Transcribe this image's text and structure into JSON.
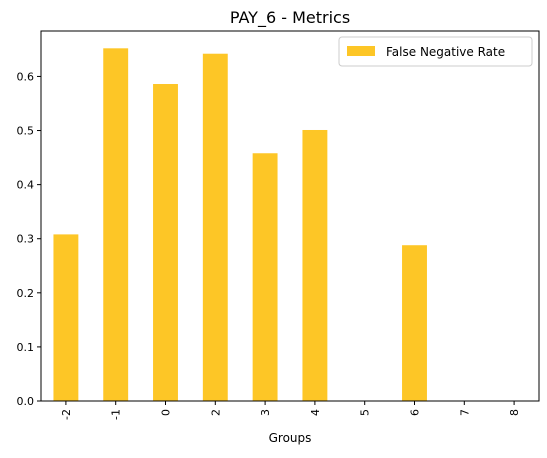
{
  "chart_data": {
    "type": "bar",
    "title": "PAY_6 - Metrics",
    "xlabel": "Groups",
    "ylabel": "",
    "categories": [
      "-2",
      "-1",
      "0",
      "2",
      "3",
      "4",
      "5",
      "6",
      "7",
      "8"
    ],
    "series": [
      {
        "name": "False Negative Rate",
        "color": "#fdc626",
        "values": [
          0.308,
          0.652,
          0.586,
          0.642,
          0.458,
          0.501,
          0,
          0.288,
          0,
          0
        ]
      }
    ],
    "ylim": [
      0,
      0.684
    ],
    "yticks": [
      "0.0",
      "0.1",
      "0.2",
      "0.3",
      "0.4",
      "0.5",
      "0.6"
    ],
    "ytick_values": [
      0,
      0.1,
      0.2,
      0.3,
      0.4,
      0.5,
      0.6
    ],
    "grid": false,
    "legend_position": "top-right"
  }
}
